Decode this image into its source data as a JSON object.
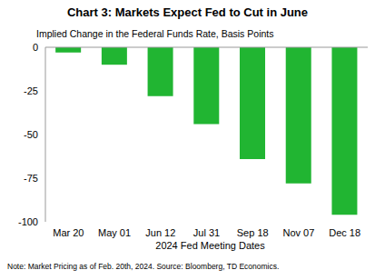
{
  "chart_data": {
    "type": "bar",
    "title": "Chart 3: Markets Expect Fed to Cut in June",
    "y_label": "Implied  Change in the Federal Funds Rate, Basis Points",
    "x_label": "2024 Fed Meeting Dates",
    "note": "Note: Market Pricing as of Feb. 20th, 2024. Source: Bloomberg, TD Economics.",
    "categories": [
      "Mar 20",
      "May 01",
      "Jun 12",
      "Jul 31",
      "Sep 18",
      "Nov 07",
      "Dec 18"
    ],
    "values": [
      -3,
      -10,
      -28,
      -44,
      -64,
      -78,
      -96
    ],
    "color": "#21b532",
    "ylim": [
      -100,
      0
    ],
    "yticks": [
      -100,
      -75,
      -50,
      -25,
      0
    ],
    "grid": false
  }
}
